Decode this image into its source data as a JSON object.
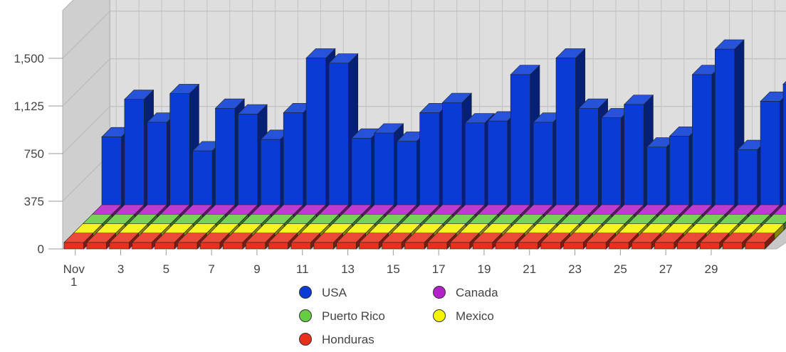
{
  "chart_data": {
    "type": "bar",
    "chart_style": "3d-depth-series",
    "title": "",
    "xlabel": "",
    "ylabel": "",
    "ylim": [
      0,
      1875
    ],
    "yticks": [
      "0",
      "375",
      "750",
      "1,125",
      "1,500"
    ],
    "ytick_values": [
      0,
      375,
      750,
      1125,
      1500
    ],
    "categories": [
      "1",
      "2",
      "3",
      "4",
      "5",
      "6",
      "7",
      "8",
      "9",
      "10",
      "11",
      "12",
      "13",
      "14",
      "15",
      "16",
      "17",
      "18",
      "19",
      "20",
      "21",
      "22",
      "23",
      "24",
      "25",
      "26",
      "27",
      "28",
      "29",
      "30",
      "31"
    ],
    "x_tick_labels": [
      {
        "day": 1,
        "label": "Nov",
        "sublabel": "1"
      },
      {
        "day": 3,
        "label": "3"
      },
      {
        "day": 5,
        "label": "5"
      },
      {
        "day": 7,
        "label": "7"
      },
      {
        "day": 9,
        "label": "9"
      },
      {
        "day": 11,
        "label": "11"
      },
      {
        "day": 13,
        "label": "13"
      },
      {
        "day": 15,
        "label": "15"
      },
      {
        "day": 17,
        "label": "17"
      },
      {
        "day": 19,
        "label": "19"
      },
      {
        "day": 21,
        "label": "21"
      },
      {
        "day": 23,
        "label": "23"
      },
      {
        "day": 25,
        "label": "25"
      },
      {
        "day": 27,
        "label": "27"
      },
      {
        "day": 29,
        "label": "29"
      }
    ],
    "grid": true,
    "legend_position": "bottom",
    "series": [
      {
        "name": "Honduras",
        "color": "#e8311d",
        "values": [
          0,
          0,
          0,
          0,
          0,
          0,
          0,
          0,
          0,
          0,
          0,
          0,
          0,
          0,
          0,
          0,
          0,
          0,
          0,
          0,
          0,
          0,
          0,
          0,
          0,
          0,
          0,
          0,
          0,
          0,
          0
        ]
      },
      {
        "name": "Mexico",
        "color": "#f5f500",
        "values": [
          0,
          0,
          0,
          0,
          0,
          0,
          0,
          0,
          0,
          0,
          0,
          0,
          0,
          0,
          0,
          0,
          0,
          0,
          0,
          0,
          0,
          0,
          0,
          0,
          0,
          0,
          0,
          0,
          0,
          0,
          0
        ]
      },
      {
        "name": "Puerto Rico",
        "color": "#66cc44",
        "values": [
          0,
          0,
          0,
          0,
          0,
          0,
          0,
          0,
          0,
          0,
          0,
          0,
          0,
          0,
          0,
          0,
          0,
          0,
          0,
          0,
          0,
          0,
          0,
          0,
          0,
          0,
          0,
          0,
          0,
          0,
          0
        ]
      },
      {
        "name": "Canada",
        "color": "#b322c8",
        "values": [
          0,
          0,
          0,
          0,
          0,
          0,
          0,
          0,
          0,
          0,
          0,
          0,
          0,
          0,
          0,
          0,
          0,
          0,
          0,
          5,
          0,
          0,
          0,
          0,
          0,
          0,
          0,
          0,
          5,
          0,
          0
        ]
      },
      {
        "name": "USA",
        "color": "#0a3bd6",
        "values": [
          585,
          880,
          700,
          925,
          475,
          810,
          765,
          565,
          775,
          1205,
          1165,
          575,
          615,
          550,
          775,
          855,
          695,
          710,
          1075,
          700,
          1205,
          810,
          735,
          840,
          505,
          590,
          1075,
          1275,
          485,
          865,
          1000
        ]
      }
    ],
    "legend": [
      {
        "name": "USA",
        "color": "#0a3bd6"
      },
      {
        "name": "Canada",
        "color": "#b322c8"
      },
      {
        "name": "Puerto Rico",
        "color": "#66cc44"
      },
      {
        "name": "Mexico",
        "color": "#f5f500"
      },
      {
        "name": "Honduras",
        "color": "#e8311d"
      }
    ]
  }
}
